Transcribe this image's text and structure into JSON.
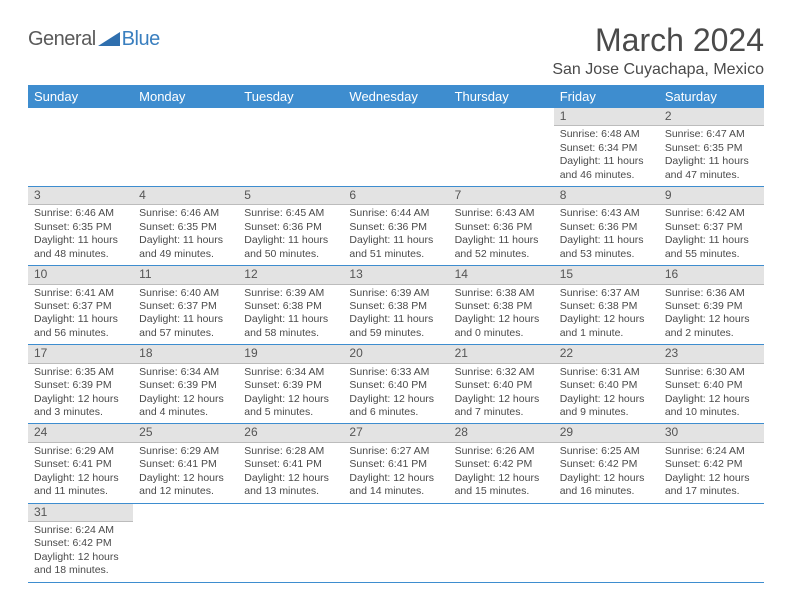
{
  "logo": {
    "a": "General",
    "b": "Blue"
  },
  "title": "March 2024",
  "location": "San Jose Cuyachapa, Mexico",
  "colors": {
    "header_bg": "#3e8dcf",
    "header_fg": "#ffffff",
    "day_bg": "#e3e3e3",
    "rule": "#3e8dcf",
    "text": "#4a4a4a"
  },
  "weekdays": [
    "Sunday",
    "Monday",
    "Tuesday",
    "Wednesday",
    "Thursday",
    "Friday",
    "Saturday"
  ],
  "weeks": [
    [
      null,
      null,
      null,
      null,
      null,
      {
        "n": "1",
        "sr": "6:48 AM",
        "ss": "6:34 PM",
        "dl": "11 hours and 46 minutes."
      },
      {
        "n": "2",
        "sr": "6:47 AM",
        "ss": "6:35 PM",
        "dl": "11 hours and 47 minutes."
      }
    ],
    [
      {
        "n": "3",
        "sr": "6:46 AM",
        "ss": "6:35 PM",
        "dl": "11 hours and 48 minutes."
      },
      {
        "n": "4",
        "sr": "6:46 AM",
        "ss": "6:35 PM",
        "dl": "11 hours and 49 minutes."
      },
      {
        "n": "5",
        "sr": "6:45 AM",
        "ss": "6:36 PM",
        "dl": "11 hours and 50 minutes."
      },
      {
        "n": "6",
        "sr": "6:44 AM",
        "ss": "6:36 PM",
        "dl": "11 hours and 51 minutes."
      },
      {
        "n": "7",
        "sr": "6:43 AM",
        "ss": "6:36 PM",
        "dl": "11 hours and 52 minutes."
      },
      {
        "n": "8",
        "sr": "6:43 AM",
        "ss": "6:36 PM",
        "dl": "11 hours and 53 minutes."
      },
      {
        "n": "9",
        "sr": "6:42 AM",
        "ss": "6:37 PM",
        "dl": "11 hours and 55 minutes."
      }
    ],
    [
      {
        "n": "10",
        "sr": "6:41 AM",
        "ss": "6:37 PM",
        "dl": "11 hours and 56 minutes."
      },
      {
        "n": "11",
        "sr": "6:40 AM",
        "ss": "6:37 PM",
        "dl": "11 hours and 57 minutes."
      },
      {
        "n": "12",
        "sr": "6:39 AM",
        "ss": "6:38 PM",
        "dl": "11 hours and 58 minutes."
      },
      {
        "n": "13",
        "sr": "6:39 AM",
        "ss": "6:38 PM",
        "dl": "11 hours and 59 minutes."
      },
      {
        "n": "14",
        "sr": "6:38 AM",
        "ss": "6:38 PM",
        "dl": "12 hours and 0 minutes."
      },
      {
        "n": "15",
        "sr": "6:37 AM",
        "ss": "6:38 PM",
        "dl": "12 hours and 1 minute."
      },
      {
        "n": "16",
        "sr": "6:36 AM",
        "ss": "6:39 PM",
        "dl": "12 hours and 2 minutes."
      }
    ],
    [
      {
        "n": "17",
        "sr": "6:35 AM",
        "ss": "6:39 PM",
        "dl": "12 hours and 3 minutes."
      },
      {
        "n": "18",
        "sr": "6:34 AM",
        "ss": "6:39 PM",
        "dl": "12 hours and 4 minutes."
      },
      {
        "n": "19",
        "sr": "6:34 AM",
        "ss": "6:39 PM",
        "dl": "12 hours and 5 minutes."
      },
      {
        "n": "20",
        "sr": "6:33 AM",
        "ss": "6:40 PM",
        "dl": "12 hours and 6 minutes."
      },
      {
        "n": "21",
        "sr": "6:32 AM",
        "ss": "6:40 PM",
        "dl": "12 hours and 7 minutes."
      },
      {
        "n": "22",
        "sr": "6:31 AM",
        "ss": "6:40 PM",
        "dl": "12 hours and 9 minutes."
      },
      {
        "n": "23",
        "sr": "6:30 AM",
        "ss": "6:40 PM",
        "dl": "12 hours and 10 minutes."
      }
    ],
    [
      {
        "n": "24",
        "sr": "6:29 AM",
        "ss": "6:41 PM",
        "dl": "12 hours and 11 minutes."
      },
      {
        "n": "25",
        "sr": "6:29 AM",
        "ss": "6:41 PM",
        "dl": "12 hours and 12 minutes."
      },
      {
        "n": "26",
        "sr": "6:28 AM",
        "ss": "6:41 PM",
        "dl": "12 hours and 13 minutes."
      },
      {
        "n": "27",
        "sr": "6:27 AM",
        "ss": "6:41 PM",
        "dl": "12 hours and 14 minutes."
      },
      {
        "n": "28",
        "sr": "6:26 AM",
        "ss": "6:42 PM",
        "dl": "12 hours and 15 minutes."
      },
      {
        "n": "29",
        "sr": "6:25 AM",
        "ss": "6:42 PM",
        "dl": "12 hours and 16 minutes."
      },
      {
        "n": "30",
        "sr": "6:24 AM",
        "ss": "6:42 PM",
        "dl": "12 hours and 17 minutes."
      }
    ],
    [
      {
        "n": "31",
        "sr": "6:24 AM",
        "ss": "6:42 PM",
        "dl": "12 hours and 18 minutes."
      },
      null,
      null,
      null,
      null,
      null,
      null
    ]
  ],
  "labels": {
    "sunrise": "Sunrise: ",
    "sunset": "Sunset: ",
    "daylight": "Daylight: "
  }
}
